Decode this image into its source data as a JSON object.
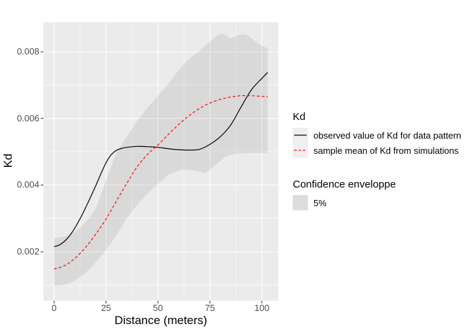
{
  "figure": {
    "background": "#FFFFFF"
  },
  "axes": {
    "x_title": "Distance (meters)",
    "y_title": "Kd"
  },
  "legend": {
    "kd": {
      "title": "Kd",
      "items": [
        {
          "label": "observed value of Kd for data pattern",
          "line_color": "#000000",
          "line_style": "solid"
        },
        {
          "label": "sample mean of Kd from simulations",
          "line_color": "#FF0000",
          "line_style": "dashed"
        }
      ]
    },
    "envelope": {
      "title": "Confidence enveloppe",
      "items": [
        {
          "label": "5%",
          "fill": "#DCDCDC"
        }
      ]
    }
  },
  "chart_data": {
    "type": "line",
    "title": "",
    "xlabel": "Distance (meters)",
    "ylabel": "Kd",
    "xlim": [
      -5.1,
      107.9
    ],
    "ylim": [
      0.00053,
      0.00889
    ],
    "x_ticks": [
      0,
      25,
      50,
      75,
      100
    ],
    "x_tick_labels": [
      "0",
      "25",
      "50",
      "75",
      "100"
    ],
    "x_minor_ticks": [
      12.5,
      37.5,
      62.5,
      87.5
    ],
    "y_ticks": [
      0.002,
      0.004,
      0.006,
      0.008
    ],
    "y_tick_labels": [
      "0.002",
      "0.004",
      "0.006",
      "0.008"
    ],
    "y_minor_ticks": [
      0.001,
      0.003,
      0.005,
      0.007
    ],
    "grid": true,
    "legend_position": "right",
    "panel_bg": "#EBEBEB",
    "grid_color": "#FFFFFF",
    "tick_mark_color": "#333333",
    "series": [
      {
        "name": "observed value of Kd for data pattern",
        "color": "#000000",
        "style": "solid",
        "x": [
          0,
          2.5,
          5,
          7.5,
          10,
          12.5,
          15,
          17.5,
          20,
          22.5,
          25,
          27.5,
          30,
          32.5,
          35,
          40,
          45,
          50,
          55,
          60,
          65,
          70,
          75,
          80,
          85,
          90,
          95,
          100,
          102.8
        ],
        "y": [
          0.00215,
          0.0022,
          0.00231,
          0.00248,
          0.00271,
          0.00299,
          0.0033,
          0.00363,
          0.00397,
          0.00433,
          0.00467,
          0.00491,
          0.00504,
          0.0051,
          0.00513,
          0.00516,
          0.00515,
          0.00513,
          0.00509,
          0.00506,
          0.00505,
          0.00507,
          0.00522,
          0.00545,
          0.0058,
          0.00634,
          0.00686,
          0.0072,
          0.00738
        ]
      },
      {
        "name": "sample mean of Kd from simulations",
        "color": "#FF0000",
        "style": "dashed",
        "x": [
          0,
          5,
          10,
          15,
          20,
          25,
          30,
          35,
          40,
          45,
          50,
          55,
          60,
          65,
          70,
          75,
          80,
          85,
          90,
          95,
          100,
          102.8
        ],
        "y": [
          0.00148,
          0.00158,
          0.0018,
          0.00212,
          0.00252,
          0.00298,
          0.00352,
          0.00405,
          0.00455,
          0.00492,
          0.0052,
          0.00552,
          0.00582,
          0.00608,
          0.0063,
          0.00646,
          0.00657,
          0.00664,
          0.00668,
          0.00668,
          0.00666,
          0.00665
        ]
      }
    ],
    "envelope": {
      "name": "5%",
      "fill_rgba": "rgba(140,140,140,0.18)",
      "x_upper": [
        0,
        5,
        10,
        15,
        20,
        25,
        30,
        35,
        40,
        45,
        50,
        55,
        60,
        65,
        70,
        75,
        79,
        82,
        85,
        89,
        92,
        96,
        100,
        102.8
      ],
      "upper": [
        0.0024,
        0.00246,
        0.0026,
        0.00288,
        0.0033,
        0.00415,
        0.00495,
        0.00545,
        0.00592,
        0.00632,
        0.00668,
        0.00703,
        0.00745,
        0.00778,
        0.00802,
        0.0083,
        0.0085,
        0.00852,
        0.00841,
        0.0085,
        0.00852,
        0.00835,
        0.00818,
        0.0081
      ],
      "x_lower": [
        0,
        5,
        10,
        15,
        20,
        25,
        30,
        35,
        40,
        45,
        50,
        55,
        60,
        63,
        68,
        73,
        78,
        83,
        88,
        93,
        98,
        102.8
      ],
      "lower": [
        0.00097,
        0.00101,
        0.00113,
        0.00136,
        0.00168,
        0.00205,
        0.0025,
        0.003,
        0.0034,
        0.00375,
        0.00403,
        0.0043,
        0.00443,
        0.00446,
        0.00443,
        0.00438,
        0.00462,
        0.00486,
        0.00494,
        0.00496,
        0.00496,
        0.00496
      ]
    }
  }
}
